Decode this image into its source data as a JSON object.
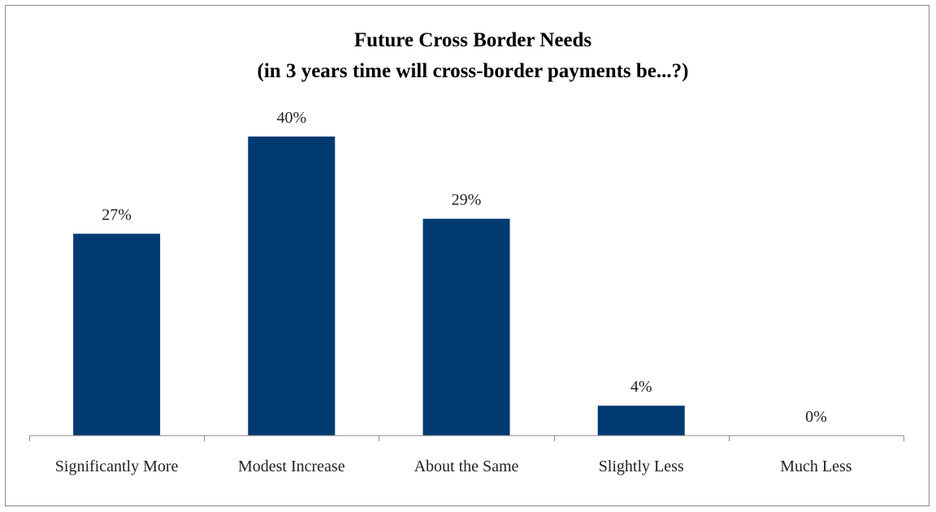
{
  "chart_data": {
    "type": "bar",
    "title": "Future Cross Border Needs",
    "subtitle": "(in 3 years time will cross-border payments be...?)",
    "categories": [
      "Significantly More",
      "Modest Increase",
      "About the Same",
      "Slightly Less",
      "Much Less"
    ],
    "values": [
      27,
      40,
      29,
      4,
      0
    ],
    "data_labels": [
      "27%",
      "40%",
      "29%",
      "4%",
      "0%"
    ],
    "xlabel": "",
    "ylabel": "",
    "ylim": [
      0,
      45
    ],
    "grid": false,
    "legend": "none",
    "bar_color": "#003a70"
  }
}
